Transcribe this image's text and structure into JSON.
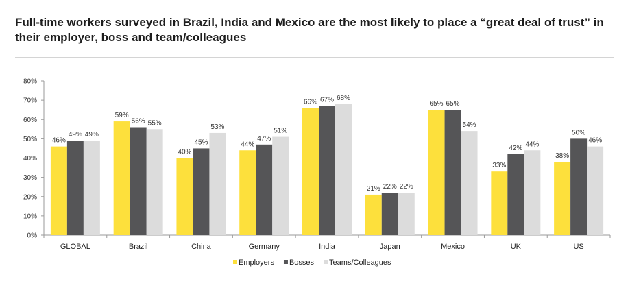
{
  "title": "Full-time workers surveyed in Brazil, India and Mexico are the most likely to place a “great deal of trust” in their employer, boss and team/colleagues",
  "colors": {
    "Employers": "#fde03c",
    "Bosses": "#555557",
    "Teams/Colleagues": "#dcdcdc"
  },
  "chart_data": {
    "type": "bar",
    "categories": [
      "GLOBAL",
      "Brazil",
      "China",
      "Germany",
      "India",
      "Japan",
      "Mexico",
      "UK",
      "US"
    ],
    "series": [
      {
        "name": "Employers",
        "values": [
          46,
          59,
          40,
          44,
          66,
          21,
          65,
          33,
          38
        ]
      },
      {
        "name": "Bosses",
        "values": [
          49,
          56,
          45,
          47,
          67,
          22,
          65,
          42,
          50
        ]
      },
      {
        "name": "Teams/Colleagues",
        "values": [
          49,
          55,
          53,
          51,
          68,
          22,
          54,
          44,
          46
        ]
      }
    ],
    "value_suffix": "%",
    "ylim": [
      0,
      80
    ],
    "yticks": [
      "0%",
      "10%",
      "20%",
      "30%",
      "40%",
      "50%",
      "60%",
      "70%",
      "80%"
    ],
    "legend_position": "bottom",
    "grid": false
  }
}
